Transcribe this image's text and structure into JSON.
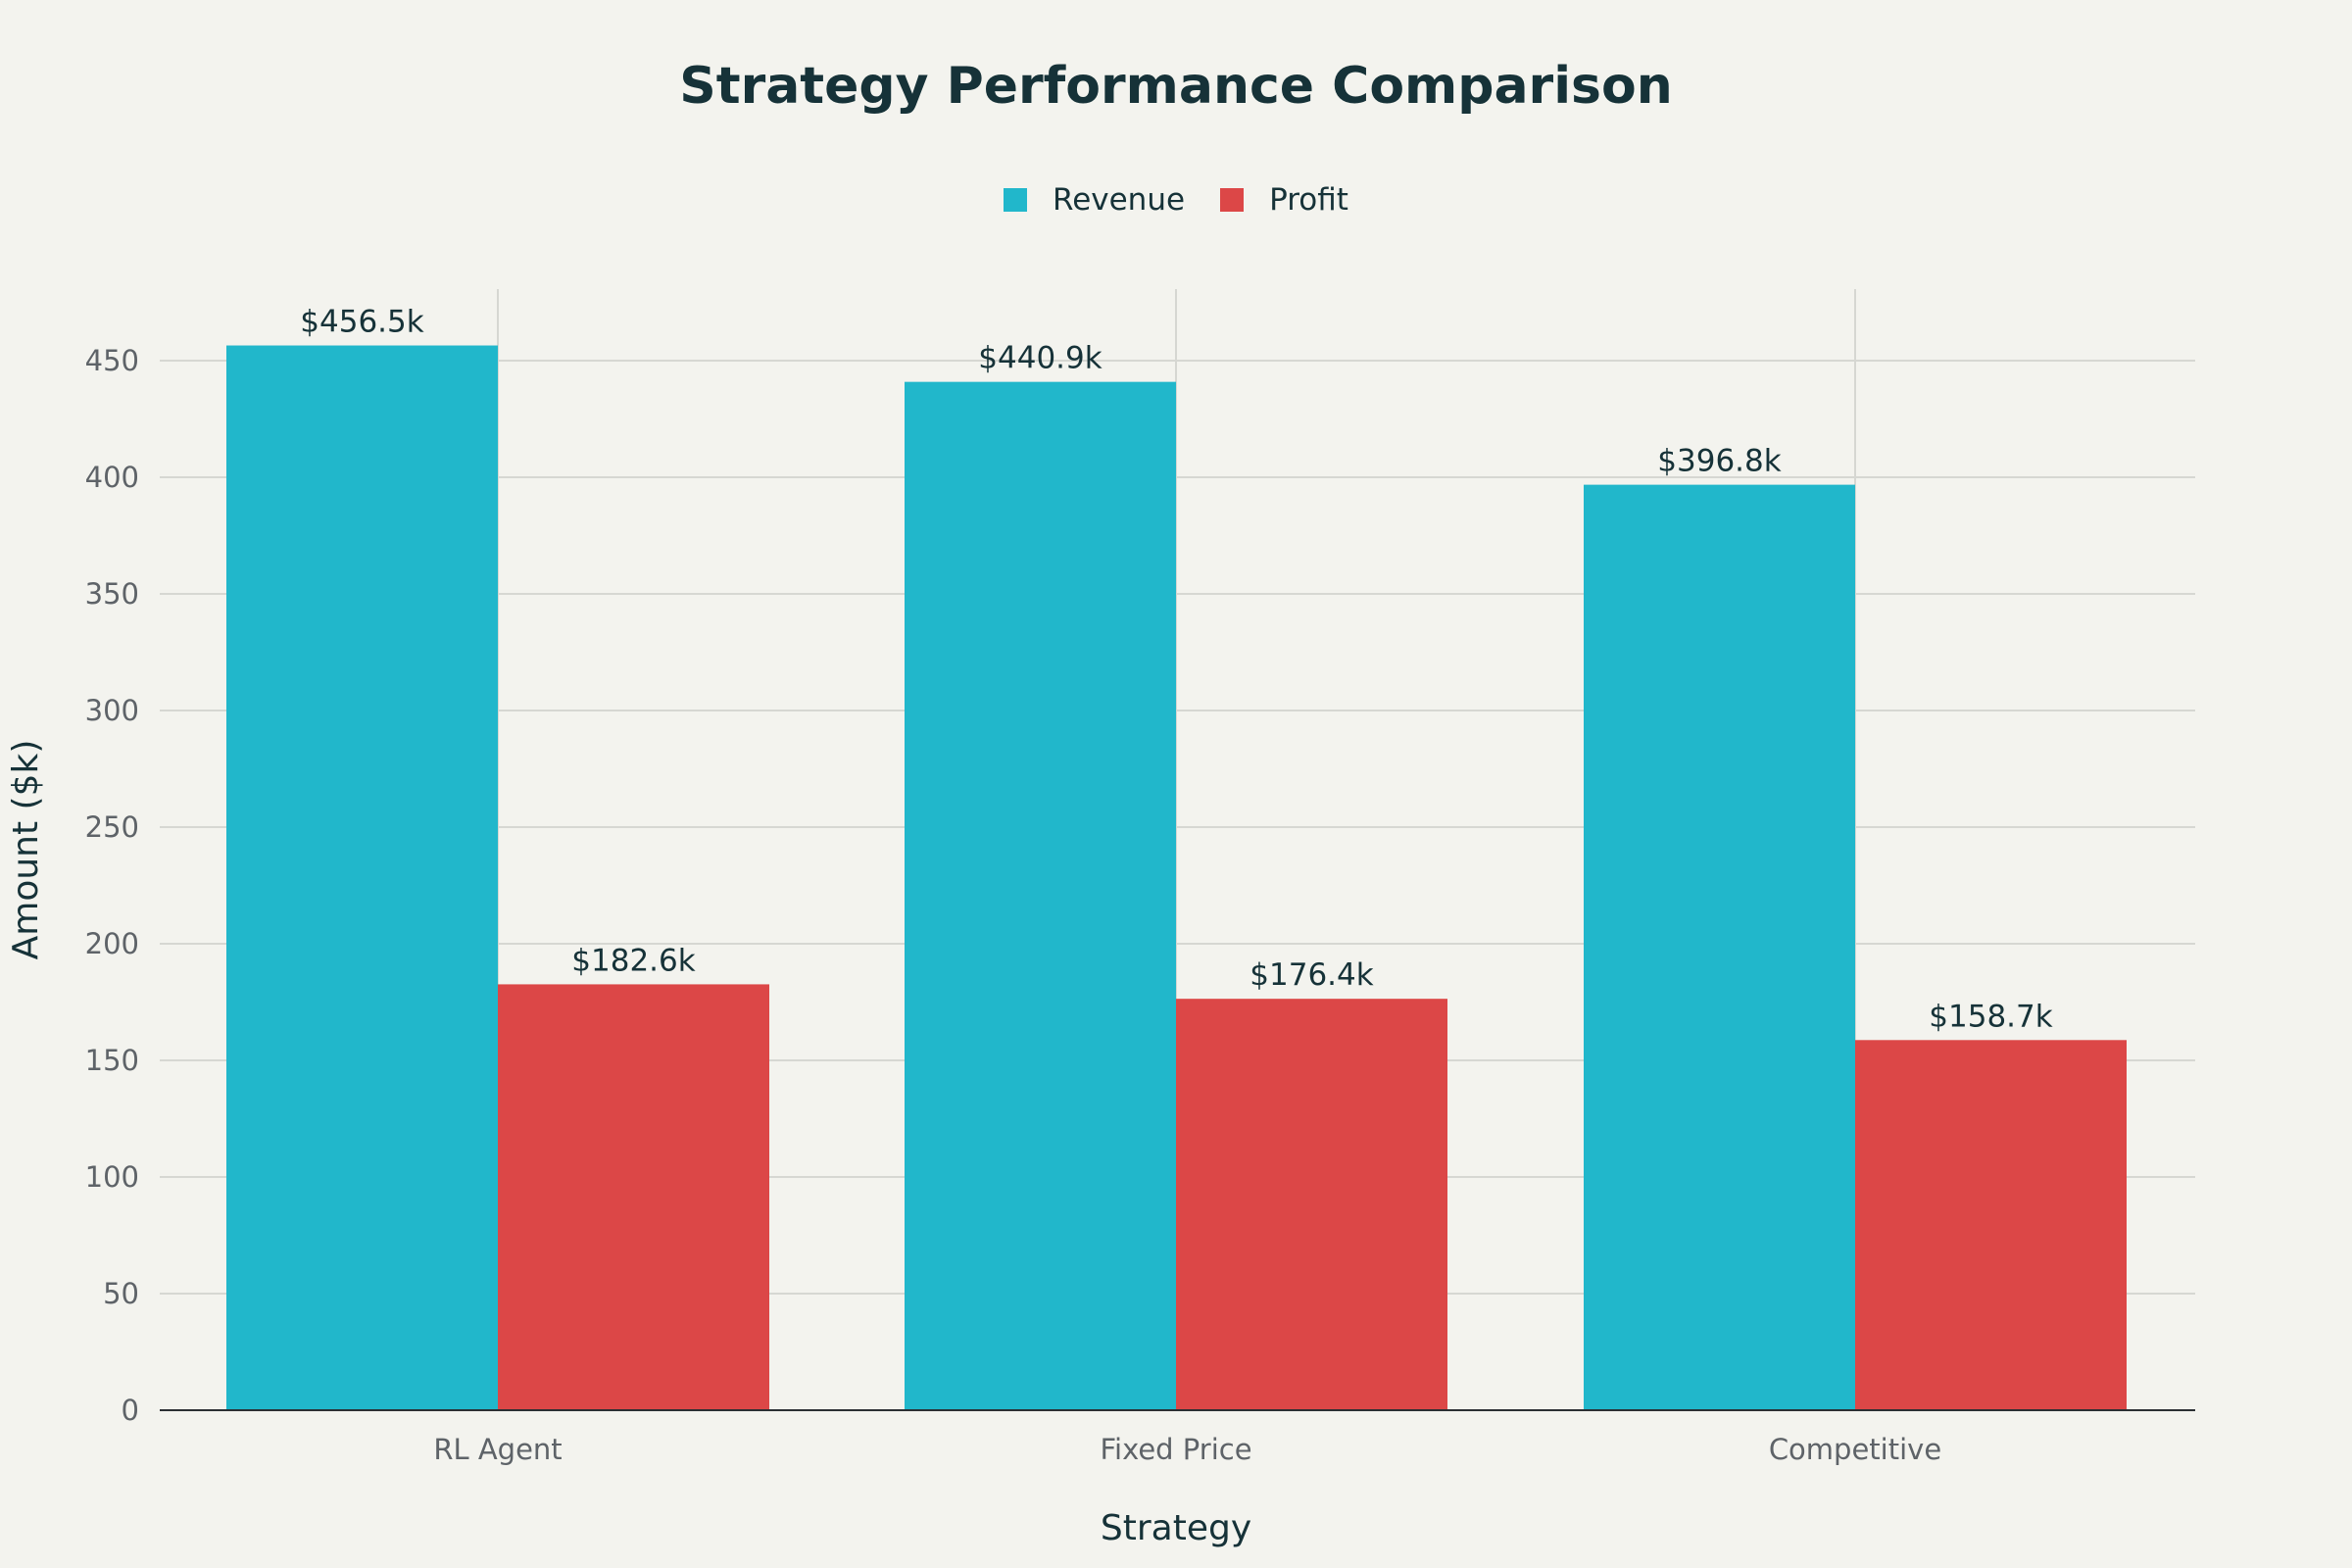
{
  "chart_data": {
    "type": "bar",
    "title": "Strategy Performance Comparison",
    "xlabel": "Strategy",
    "ylabel": "Amount ($k)",
    "categories": [
      "RL Agent",
      "Fixed Price",
      "Competitive"
    ],
    "series": [
      {
        "name": "Revenue",
        "color": "#21b7cb",
        "values": [
          456.5,
          440.9,
          396.8
        ],
        "labels": [
          "$456.5k",
          "$440.9k",
          "$396.8k"
        ]
      },
      {
        "name": "Profit",
        "color": "#dc4747",
        "values": [
          182.6,
          176.4,
          158.7
        ],
        "labels": [
          "$182.6k",
          "$176.4k",
          "$158.7k"
        ]
      }
    ],
    "ylim": [
      0,
      480
    ],
    "yticks": [
      0,
      50,
      100,
      150,
      200,
      250,
      300,
      350,
      400,
      450
    ],
    "grid": true,
    "legend_position": "top-center",
    "background": "#f3f3ee"
  }
}
